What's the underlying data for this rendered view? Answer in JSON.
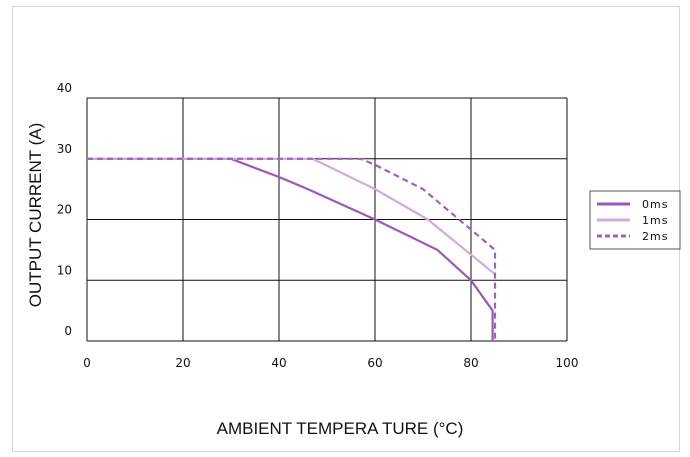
{
  "chart_data": {
    "type": "line",
    "xlabel": "AMBIENT TEMPERA TURE (°C)",
    "ylabel": "OUTPUT CURRENT (A)",
    "xlim": [
      0,
      100
    ],
    "ylim": [
      0,
      40
    ],
    "x_ticks": [
      "0",
      "20",
      "40",
      "60",
      "80",
      "100"
    ],
    "y_ticks": [
      "0",
      "10",
      "20",
      "30",
      "40"
    ],
    "grid": true,
    "legend_position": "right",
    "series": [
      {
        "name": "0ms",
        "color": "#9b59b6",
        "style": "solid",
        "x": [
          0,
          30,
          40,
          46,
          60,
          73,
          80,
          84.5,
          84.5
        ],
        "y": [
          30,
          30,
          27,
          25,
          20,
          15,
          10,
          5,
          0
        ]
      },
      {
        "name": "1ms",
        "color": "#d4a8e0",
        "style": "solid",
        "x": [
          0,
          47,
          60,
          71,
          85
        ],
        "y": [
          30,
          30,
          25,
          20,
          11
        ]
      },
      {
        "name": "2ms",
        "color": "#a260bf",
        "style": "dashed",
        "x": [
          0,
          57,
          60,
          70,
          85,
          85
        ],
        "y": [
          30,
          30,
          29,
          25,
          15,
          0
        ]
      }
    ]
  }
}
